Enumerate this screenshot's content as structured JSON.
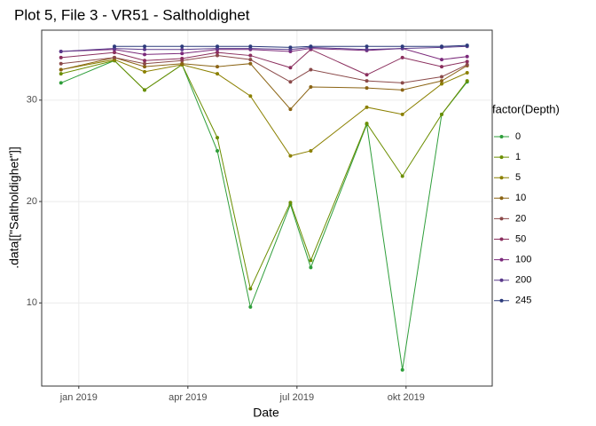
{
  "chart_data": {
    "type": "line",
    "title": "Plot 5, File 3 - VR51  -  Saltholdighet",
    "x_label": "Date",
    "y_label": ".data[[\"Saltholdighet\"]]",
    "legend_title": "factor(Depth)",
    "legend": "right",
    "grid": true,
    "x": [
      -0.49,
      0.98,
      1.81,
      2.84,
      3.81,
      4.72,
      5.82,
      6.38,
      7.92,
      8.9,
      9.98,
      10.68
    ],
    "xlim": [
      -1.02,
      11.37
    ],
    "xticks": [
      {
        "value": 0,
        "label": "jan 2019"
      },
      {
        "value": 3,
        "label": "apr 2019"
      },
      {
        "value": 6,
        "label": "jul 2019"
      },
      {
        "value": 9,
        "label": "okt 2019"
      }
    ],
    "ylim": [
      1.8,
      36.9
    ],
    "yticks": [
      10,
      20,
      30
    ],
    "series": [
      {
        "name": "0",
        "color": "#2e9e3a",
        "values": [
          31.7,
          33.9,
          31.0,
          33.5,
          25.0,
          9.6,
          19.7,
          13.5,
          27.6,
          3.4,
          28.6,
          31.8
        ]
      },
      {
        "name": "1",
        "color": "#6b8e00",
        "values": [
          32.6,
          33.9,
          31.0,
          33.5,
          26.3,
          11.4,
          19.9,
          14.2,
          27.7,
          22.5,
          28.6,
          31.9
        ]
      },
      {
        "name": "5",
        "color": "#8b8000",
        "values": [
          33.0,
          34.0,
          32.8,
          33.5,
          32.6,
          30.4,
          24.5,
          25.0,
          29.3,
          28.6,
          31.6,
          32.7
        ]
      },
      {
        "name": "10",
        "color": "#8b6414",
        "values": [
          33.0,
          34.2,
          33.3,
          33.6,
          33.3,
          33.6,
          29.1,
          31.3,
          31.2,
          31.0,
          31.9,
          33.4
        ]
      },
      {
        "name": "20",
        "color": "#8b4a4a",
        "values": [
          33.6,
          34.2,
          33.6,
          33.9,
          34.4,
          34.0,
          31.8,
          33.0,
          31.9,
          31.7,
          32.3,
          33.5
        ]
      },
      {
        "name": "50",
        "color": "#8b2f5e",
        "values": [
          34.2,
          34.7,
          33.9,
          34.1,
          34.7,
          34.4,
          33.2,
          35.0,
          32.5,
          34.2,
          33.3,
          33.8
        ]
      },
      {
        "name": "100",
        "color": "#7b2a7b",
        "values": [
          34.8,
          35.0,
          34.5,
          34.6,
          35.0,
          35.0,
          34.8,
          35.1,
          34.9,
          35.1,
          34.0,
          34.3
        ]
      },
      {
        "name": "200",
        "color": "#5a3a8b",
        "values": [
          34.8,
          35.1,
          35.0,
          35.0,
          35.1,
          35.1,
          35.0,
          35.2,
          35.0,
          35.1,
          35.2,
          35.3
        ]
      },
      {
        "name": "245",
        "color": "#2b3a7b",
        "values": [
          null,
          35.3,
          35.3,
          35.3,
          35.3,
          35.3,
          35.2,
          35.3,
          35.3,
          35.3,
          35.3,
          35.4
        ]
      }
    ]
  }
}
